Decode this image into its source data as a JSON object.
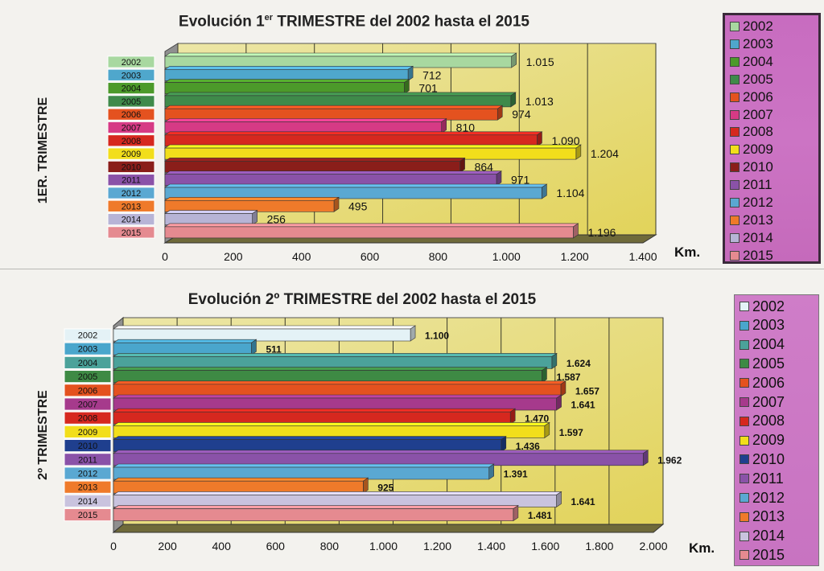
{
  "colors": {
    "2002": "#a8d8a0",
    "2003": "#4fa7cc",
    "2004": "#4c9a2a",
    "2005": "#3f8a4a",
    "2006": "#e4521f",
    "2007": "#d63a85",
    "2008": "#d6281f",
    "2009": "#f2de1b",
    "2010": "#8a1e1a",
    "2011": "#8a52a8",
    "2012": "#5aa8d2",
    "2013": "#ef7a2a",
    "2014": "#b7b4d6",
    "2015": "#e58a90"
  },
  "colors2": {
    "2002": "#e4f2f6",
    "2003": "#4aa6cc",
    "2004": "#4ba29a",
    "2005": "#3e8a44",
    "2006": "#e4521f",
    "2007": "#a63a8c",
    "2008": "#d6281f",
    "2009": "#f2de1b",
    "2010": "#1f3f8e",
    "2011": "#8a52a8",
    "2012": "#5aa8d2",
    "2013": "#ef7a2a",
    "2014": "#c9c3de",
    "2015": "#e58a90"
  },
  "chart_data": [
    {
      "type": "bar",
      "title_main": "Evolución 1",
      "title_sup": "er",
      "title_rest": " TRIMESTRE del 2002 hasta el 2015",
      "ylabel": "1ER. TRIMESTRE",
      "xlabel": "Km.",
      "xlim": [
        0,
        1400
      ],
      "xticks": [
        "0",
        "200",
        "400",
        "600",
        "800",
        "1.000",
        "1.200",
        "1.400"
      ],
      "tick_values": [
        0,
        200,
        400,
        600,
        800,
        1000,
        1200,
        1400
      ],
      "categories": [
        "2002",
        "2003",
        "2004",
        "2005",
        "2006",
        "2007",
        "2008",
        "2009",
        "2010",
        "2011",
        "2012",
        "2013",
        "2014",
        "2015"
      ],
      "values": [
        1015,
        712,
        701,
        1013,
        974,
        810,
        1090,
        1204,
        864,
        971,
        1104,
        495,
        256,
        1196
      ],
      "value_labels": [
        "1.015",
        "712",
        "701",
        "1.013",
        "974",
        "810",
        "1.090",
        "1.204",
        "864",
        "971",
        "1.104",
        "495",
        "256",
        "1.196"
      ],
      "legend": [
        "2002",
        "2003",
        "2004",
        "2005",
        "2006",
        "2007",
        "2008",
        "2009",
        "2010",
        "2011",
        "2012",
        "2013",
        "2014",
        "2015"
      ],
      "legend_position": "right"
    },
    {
      "type": "bar",
      "title_main": "Evolución 2º TRIMESTRE del 2002 hasta el 2015",
      "ylabel": "2º TRIMESTRE",
      "xlabel": "Km.",
      "xlim": [
        0,
        2000
      ],
      "xticks": [
        "0",
        "200",
        "400",
        "600",
        "800",
        "1.000",
        "1.200",
        "1.400",
        "1.600",
        "1.800",
        "2.000"
      ],
      "tick_values": [
        0,
        200,
        400,
        600,
        800,
        1000,
        1200,
        1400,
        1600,
        1800,
        2000
      ],
      "categories": [
        "2002",
        "2003",
        "2004",
        "2005",
        "2006",
        "2007",
        "2008",
        "2009",
        "2010",
        "2011",
        "2012",
        "2013",
        "2014",
        "2015"
      ],
      "values": [
        1100,
        511,
        1624,
        1587,
        1657,
        1641,
        1470,
        1597,
        1436,
        1962,
        1391,
        925,
        1641,
        1481
      ],
      "value_labels": [
        "1.100",
        "511",
        "1.624",
        "1.587",
        "1.657",
        "1.641",
        "1.470",
        "1.597",
        "1.436",
        "1.962",
        "1.391",
        "925",
        "1.641",
        "1.481"
      ],
      "legend": [
        "2002",
        "2003",
        "2004",
        "2005",
        "2006",
        "2007",
        "2008",
        "2009",
        "2010",
        "2011",
        "2012",
        "2013",
        "2014",
        "2015"
      ],
      "legend_position": "right"
    }
  ]
}
